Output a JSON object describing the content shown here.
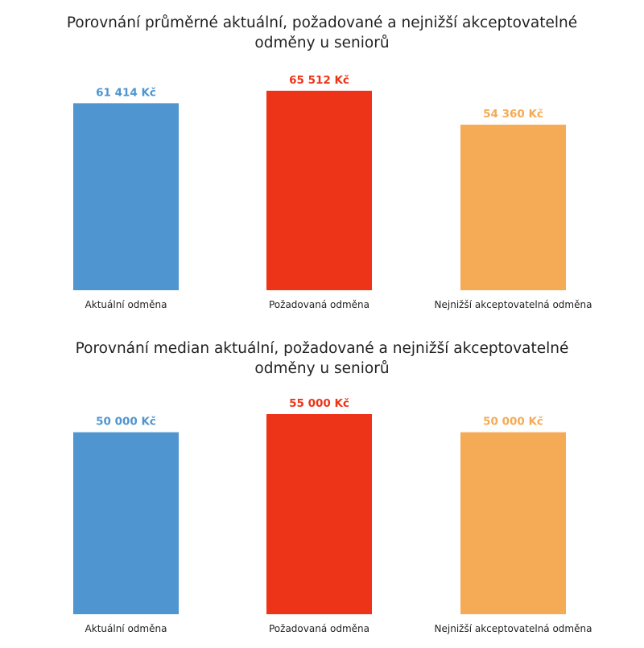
{
  "chart_data": [
    {
      "type": "bar",
      "title": "Porovnání průměrné aktuální, požadované a nejnižší akceptovatelné odměny u seniorů",
      "title_lines": [
        "Porovnání průměrné aktuální, požadované a nejnižší akceptovatelné",
        "odměny u seniorů"
      ],
      "categories": [
        "Aktuální odměna",
        "Požadovaná odměna",
        "Nejnižší akceptovatelná odměna"
      ],
      "values": [
        61414,
        65512,
        54360
      ],
      "value_labels": [
        "61 414 Kč",
        "65 512 Kč",
        "54 360 Kč"
      ],
      "colors": [
        "#4f95d0",
        "#ee3418",
        "#f5aa55"
      ],
      "xlabel": "",
      "ylabel": "",
      "ylim": [
        0,
        66000
      ],
      "grid": false,
      "axes_visible": false
    },
    {
      "type": "bar",
      "title": "Porovnání median aktuální, požadované a nejnižší akceptovatelné odměny u seniorů",
      "title_lines": [
        "Porovnání median aktuální, požadované a nejnižší akceptovatelné",
        "odměny u seniorů"
      ],
      "categories": [
        "Aktuální odměna",
        "Požadovaná odměna",
        "Nejnižší akceptovatelná odměna"
      ],
      "values": [
        50000,
        55000,
        50000
      ],
      "value_labels": [
        "50 000 Kč",
        "55 000 Kč",
        "50 000 Kč"
      ],
      "colors": [
        "#4f95d0",
        "#ee3418",
        "#f5aa55"
      ],
      "xlabel": "",
      "ylabel": "",
      "ylim": [
        0,
        55000
      ],
      "grid": false,
      "axes_visible": false
    }
  ]
}
